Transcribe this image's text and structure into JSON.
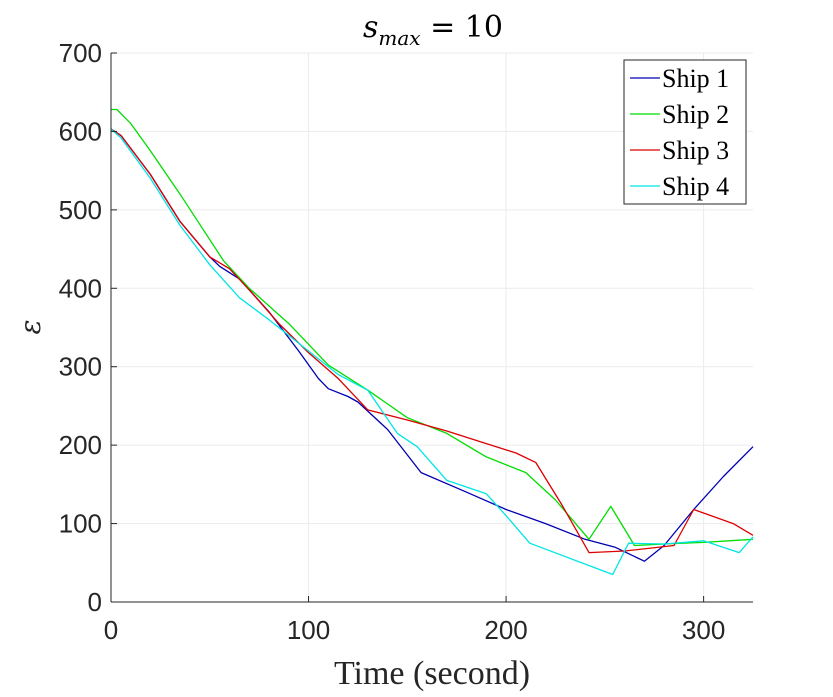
{
  "chart_data": {
    "type": "line",
    "title": "s_max = 10",
    "title_parts": {
      "base": "s",
      "sub": "max",
      "rest": " = 10"
    },
    "xlabel": "Time (second)",
    "ylabel": "ε",
    "xlim": [
      0,
      325
    ],
    "ylim": [
      0,
      700
    ],
    "xticks": [
      0,
      100,
      200,
      300
    ],
    "yticks": [
      0,
      100,
      200,
      300,
      400,
      500,
      600,
      700
    ],
    "grid": true,
    "legend_position": "top-right",
    "series": [
      {
        "name": "Ship 1",
        "color": "#0000b3",
        "x": [
          0,
          5,
          20,
          35,
          50,
          55,
          65,
          80,
          95,
          105,
          110,
          120,
          125,
          140,
          157,
          180,
          200,
          220,
          240,
          255,
          270,
          280,
          295,
          310,
          325
        ],
        "y": [
          603,
          595,
          545,
          485,
          440,
          428,
          412,
          370,
          320,
          285,
          272,
          262,
          255,
          220,
          165,
          140,
          118,
          100,
          80,
          70,
          52,
          72,
          118,
          160,
          198
        ]
      },
      {
        "name": "Ship 2",
        "color": "#00dd00",
        "x": [
          0,
          3,
          10,
          20,
          35,
          50,
          57,
          70,
          90,
          110,
          130,
          150,
          170,
          190,
          210,
          225,
          242,
          253,
          265,
          280,
          300,
          325
        ],
        "y": [
          628,
          628,
          610,
          575,
          520,
          462,
          435,
          400,
          355,
          302,
          270,
          235,
          215,
          185,
          165,
          130,
          80,
          122,
          72,
          74,
          76,
          80
        ]
      },
      {
        "name": "Ship 3",
        "color": "#dd0000",
        "x": [
          0,
          5,
          20,
          35,
          50,
          60,
          70,
          85,
          100,
          115,
          130,
          150,
          170,
          190,
          205,
          215,
          228,
          242,
          260,
          285,
          295,
          315,
          325
        ],
        "y": [
          603,
          595,
          545,
          485,
          440,
          425,
          398,
          355,
          318,
          285,
          245,
          232,
          218,
          202,
          190,
          178,
          125,
          63,
          65,
          72,
          118,
          100,
          85
        ]
      },
      {
        "name": "Ship 4",
        "color": "#00e5e5",
        "x": [
          0,
          5,
          20,
          35,
          50,
          65,
          80,
          100,
          115,
          130,
          145,
          155,
          170,
          190,
          200,
          212,
          254,
          262,
          280,
          300,
          318,
          325
        ],
        "y": [
          603,
          592,
          540,
          480,
          430,
          388,
          360,
          320,
          290,
          270,
          215,
          198,
          155,
          138,
          110,
          75,
          35,
          75,
          74,
          78,
          63,
          83
        ]
      }
    ]
  }
}
